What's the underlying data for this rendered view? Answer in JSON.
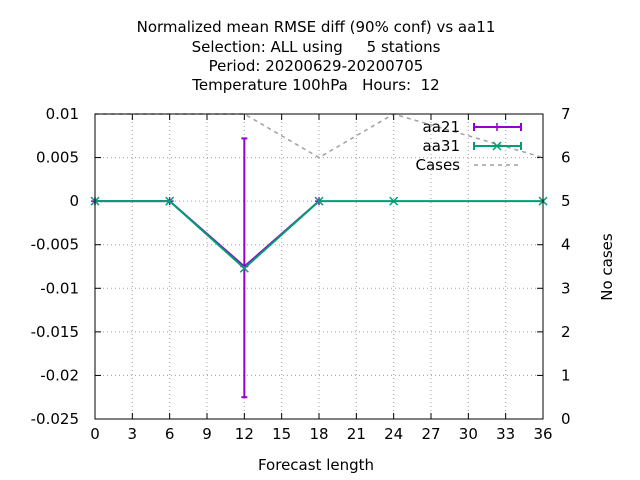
{
  "chart_data": {
    "type": "line",
    "title_lines": [
      "Normalized mean RMSE diff (90% conf) vs aa11",
      "Selection: ALL using     5 stations",
      "Period: 20200629-20200705",
      "Temperature 100hPa   Hours:  12"
    ],
    "xlabel": "Forecast length",
    "ylabel": "",
    "y2label": "No cases",
    "xlim": [
      0,
      36
    ],
    "ylim": [
      -0.025,
      0.01
    ],
    "y2lim": [
      0,
      7
    ],
    "x_ticks": [
      "0",
      "3",
      "6",
      "9",
      "12",
      "15",
      "18",
      "21",
      "24",
      "27",
      "30",
      "33",
      "36"
    ],
    "y_ticks": [
      "0.01",
      "0.005",
      "0",
      "-0.005",
      "-0.01",
      "-0.015",
      "-0.02",
      "-0.025"
    ],
    "y2_ticks": [
      "7",
      "6",
      "5",
      "4",
      "3",
      "2",
      "1",
      "0"
    ],
    "grid": true,
    "legend_position": "top-right",
    "series": [
      {
        "name": "aa21",
        "color": "#9400d3",
        "marker": "plus",
        "x": [
          0,
          6,
          12,
          18
        ],
        "y": [
          0,
          0,
          -0.0075,
          0
        ],
        "error_low": [
          0,
          0,
          -0.0225,
          0
        ],
        "error_high": [
          0,
          0,
          0.0072,
          0
        ]
      },
      {
        "name": "aa31",
        "color": "#009e73",
        "marker": "x",
        "x": [
          0,
          6,
          12,
          18,
          24,
          36
        ],
        "y": [
          0,
          0,
          -0.0077,
          0,
          0,
          0
        ]
      },
      {
        "name": "Cases",
        "color": "#a0a0a0",
        "dashed": true,
        "axis": "y2",
        "x": [
          0,
          6,
          12,
          18,
          24,
          36
        ],
        "y": [
          7,
          7,
          7,
          6,
          7,
          6
        ]
      }
    ]
  }
}
